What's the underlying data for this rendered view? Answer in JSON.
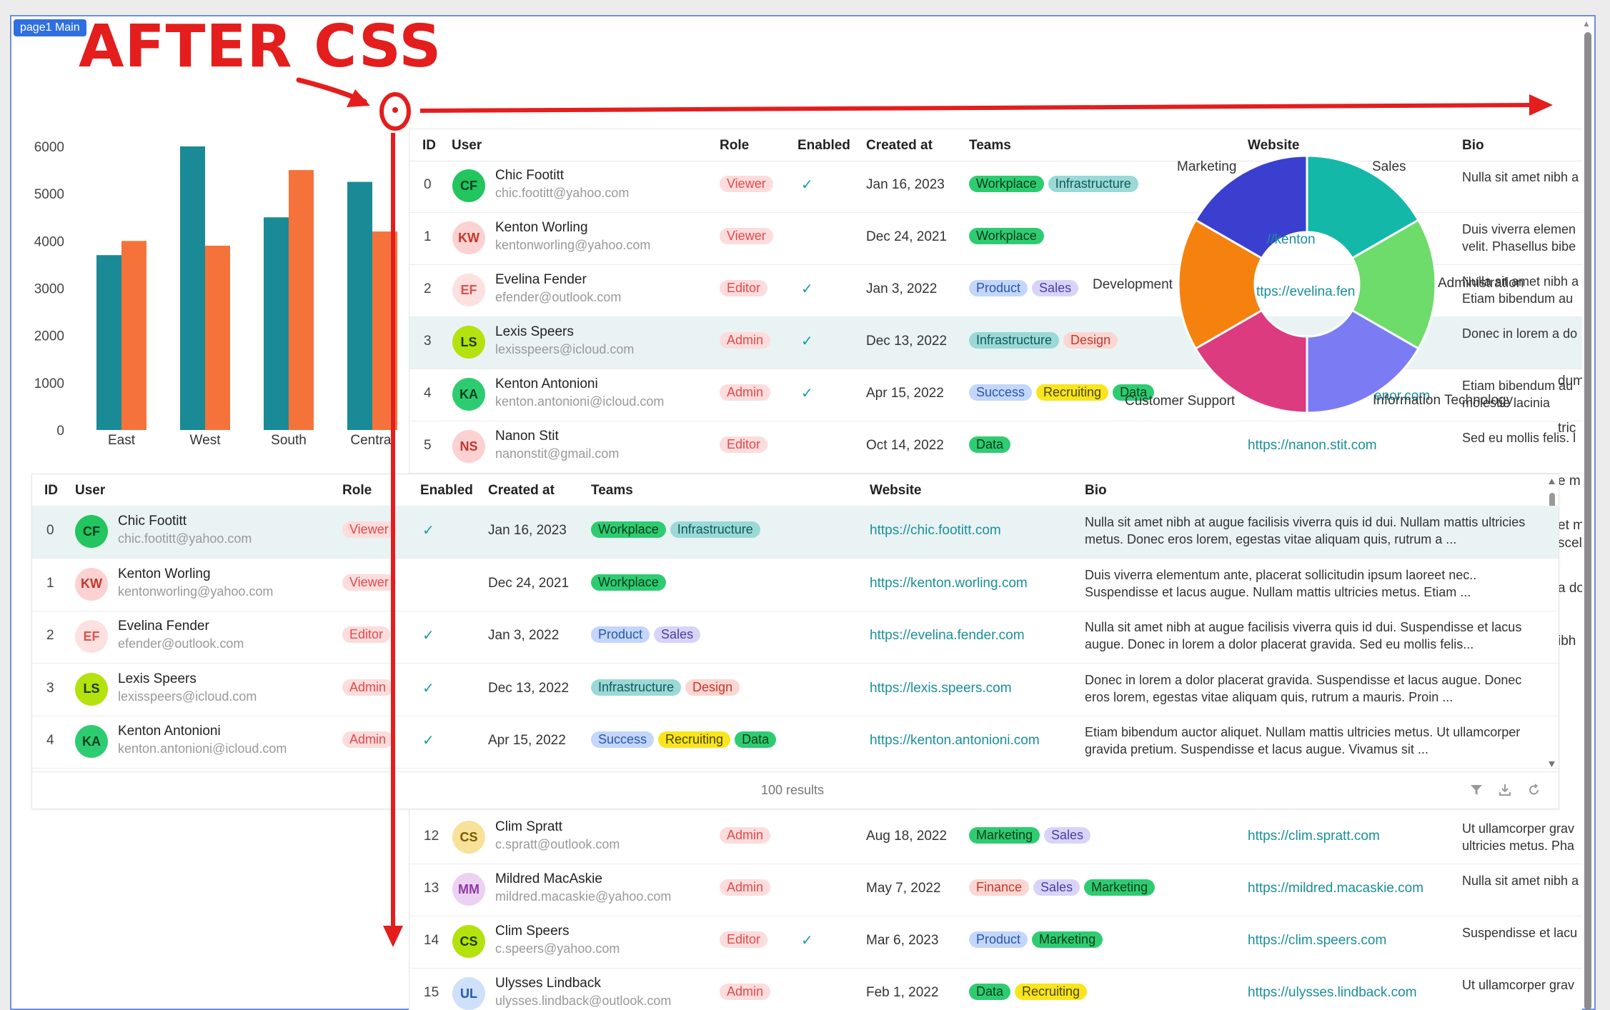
{
  "page_badge": "page1 Main",
  "annotation_title": "AFTER CSS",
  "colors": {
    "teal": "#1a8a96",
    "orange": "#f5733a",
    "arrow": "#e41d1d"
  },
  "chart_data": {
    "type": "bar",
    "categories": [
      "East",
      "West",
      "South",
      "Central"
    ],
    "series": [
      {
        "values": [
          3700,
          6000,
          4500,
          5250
        ],
        "color": "#1a8a96"
      },
      {
        "values": [
          4000,
          3900,
          5500,
          4200
        ],
        "color": "#f5733a"
      }
    ],
    "yticks": [
      "0",
      "1000",
      "2000",
      "3000",
      "4000",
      "5000",
      "6000"
    ],
    "ylim": [
      0,
      6000
    ]
  },
  "donut_data": {
    "type": "pie",
    "slices": [
      {
        "label": "Sales",
        "value": 1,
        "color": "#14b8a8"
      },
      {
        "label": "Administration",
        "value": 1,
        "color": "#6ddc6a"
      },
      {
        "label": "Information Technology",
        "value": 1,
        "color": "#7b7cf4"
      },
      {
        "label": "Customer Support",
        "value": 1,
        "color": "#dc3b80"
      },
      {
        "label": "Development",
        "value": 1,
        "color": "#f5820f"
      },
      {
        "label": "Marketing",
        "value": 1,
        "color": "#3b3fcf"
      }
    ]
  },
  "columns": {
    "id": "ID",
    "user": "User",
    "role": "Role",
    "enabled": "Enabled",
    "created": "Created at",
    "teams": "Teams",
    "website": "Website",
    "bio": "Bio"
  },
  "back_rows": [
    {
      "id": "0",
      "initials": "CF",
      "name": "Chic Footitt",
      "email": "chic.footitt@yahoo.com",
      "role": "Viewer",
      "enabled": true,
      "created": "Jan 16, 2023",
      "teams": [
        [
          "Workplace",
          "g"
        ],
        [
          "Infrastructure",
          "t"
        ]
      ],
      "website": "",
      "bio": "Nulla sit amet nibh a"
    },
    {
      "id": "1",
      "initials": "KW",
      "name": "Kenton Worling",
      "email": "kentonworling@yahoo.com",
      "role": "Viewer",
      "enabled": false,
      "created": "Dec 24, 2021",
      "teams": [
        [
          "Workplace",
          "g"
        ]
      ],
      "website": "",
      "bio": "Duis viverra elemen velit. Phasellus bibe"
    },
    {
      "id": "2",
      "initials": "EF",
      "name": "Evelina Fender",
      "email": "efender@outlook.com",
      "role": "Editor",
      "enabled": true,
      "created": "Jan 3, 2022",
      "teams": [
        [
          "Product",
          "b"
        ],
        [
          "Sales",
          "p"
        ]
      ],
      "website": "",
      "bio": "Nulla sit amet nibh a Etiam bibendum au"
    },
    {
      "id": "3",
      "initials": "LS",
      "name": "Lexis Speers",
      "email": "lexisspeers@icloud.com",
      "role": "Admin",
      "enabled": true,
      "created": "Dec 13, 2022",
      "teams": [
        [
          "Infrastructure",
          "t"
        ],
        [
          "Design",
          "r"
        ]
      ],
      "website": "",
      "bio": "Donec in lorem a do"
    },
    {
      "id": "4",
      "initials": "KA",
      "name": "Kenton Antonioni",
      "email": "kenton.antonioni@icloud.com",
      "role": "Admin",
      "enabled": true,
      "created": "Apr 15, 2022",
      "teams": [
        [
          "Success",
          "b"
        ],
        [
          "Recruiting",
          "y"
        ],
        [
          "Data",
          "g"
        ]
      ],
      "website": "",
      "bio": "Etiam bibendum au molestie lacinia"
    },
    {
      "id": "5",
      "initials": "NS",
      "name": "Nanon Stit",
      "email": "nanonstit@gmail.com",
      "role": "Editor",
      "enabled": false,
      "created": "Oct 14, 2022",
      "teams": [
        [
          "Data",
          "g"
        ]
      ],
      "website": "https://nanon.stit.com",
      "bio": "Sed eu mollis felis. l"
    },
    {
      "id": "12",
      "initials": "CS",
      "name": "Clim Spratt",
      "email": "c.spratt@outlook.com",
      "role": "Admin",
      "enabled": false,
      "created": "Aug 18, 2022",
      "teams": [
        [
          "Marketing",
          "g"
        ],
        [
          "Sales",
          "p"
        ]
      ],
      "website": "https://clim.spratt.com",
      "bio": "Ut ullamcorper grav ultricies metus. Pha"
    },
    {
      "id": "13",
      "initials": "MM",
      "name": "Mildred MacAskie",
      "email": "mildred.macaskie@yahoo.com",
      "role": "Admin",
      "enabled": false,
      "created": "May 7, 2022",
      "teams": [
        [
          "Finance",
          "r"
        ],
        [
          "Sales",
          "p"
        ],
        [
          "Marketing",
          "g"
        ]
      ],
      "website": "https://mildred.macaskie.com",
      "bio": "Nulla sit amet nibh a"
    },
    {
      "id": "14",
      "initials": "CS",
      "name": "Clim Speers",
      "email": "c.speers@yahoo.com",
      "role": "Editor",
      "enabled": true,
      "created": "Mar 6, 2023",
      "teams": [
        [
          "Product",
          "b"
        ],
        [
          "Marketing",
          "g"
        ]
      ],
      "website": "https://clim.speers.com",
      "bio": "Suspendisse et lacu"
    },
    {
      "id": "15",
      "initials": "UL",
      "name": "Ulysses Lindback",
      "email": "ulysses.lindback@outlook.com",
      "role": "Admin",
      "enabled": false,
      "created": "Feb 1, 2022",
      "teams": [
        [
          "Data",
          "g"
        ],
        [
          "Recruiting",
          "y"
        ]
      ],
      "website": "https://ulysses.lindback.com",
      "bio": "Ut ullamcorper grav"
    }
  ],
  "back_partial_texts": [
    "//kenton",
    "ttps://evelina.fen",
    "enor.com",
    "dum",
    "tric",
    "e m",
    "et m",
    "scel",
    "a do",
    "ibh"
  ],
  "front_rows": [
    {
      "id": "0",
      "initials": "CF",
      "name": "Chic Footitt",
      "email": "chic.footitt@yahoo.com",
      "role": "Viewer",
      "enabled": true,
      "created": "Jan 16, 2023",
      "teams": [
        [
          "Workplace",
          "g"
        ],
        [
          "Infrastructure",
          "t"
        ]
      ],
      "website": "https://chic.footitt.com",
      "bio": "Nulla sit amet nibh at augue facilisis viverra quis id dui. Nullam mattis ultricies metus. Donec eros lorem, egestas vitae aliquam quis, rutrum a ..."
    },
    {
      "id": "1",
      "initials": "KW",
      "name": "Kenton Worling",
      "email": "kentonworling@yahoo.com",
      "role": "Viewer",
      "enabled": false,
      "created": "Dec 24, 2021",
      "teams": [
        [
          "Workplace",
          "g"
        ]
      ],
      "website": "https://kenton.worling.com",
      "bio": "Duis viverra elementum ante, placerat sollicitudin ipsum laoreet nec.. Suspendisse et lacus augue. Nullam mattis ultricies metus. Etiam ..."
    },
    {
      "id": "2",
      "initials": "EF",
      "name": "Evelina Fender",
      "email": "efender@outlook.com",
      "role": "Editor",
      "enabled": true,
      "created": "Jan 3, 2022",
      "teams": [
        [
          "Product",
          "b"
        ],
        [
          "Sales",
          "p"
        ]
      ],
      "website": "https://evelina.fender.com",
      "bio": "Nulla sit amet nibh at augue facilisis viverra quis id dui. Suspendisse et lacus augue. Donec in lorem a dolor placerat gravida. Sed eu mollis felis..."
    },
    {
      "id": "3",
      "initials": "LS",
      "name": "Lexis Speers",
      "email": "lexisspeers@icloud.com",
      "role": "Admin",
      "enabled": true,
      "created": "Dec 13, 2022",
      "teams": [
        [
          "Infrastructure",
          "t"
        ],
        [
          "Design",
          "r"
        ]
      ],
      "website": "https://lexis.speers.com",
      "bio": "Donec in lorem a dolor placerat gravida. Suspendisse et lacus augue. Donec eros lorem, egestas vitae aliquam quis, rutrum a mauris. Proin ..."
    },
    {
      "id": "4",
      "initials": "KA",
      "name": "Kenton Antonioni",
      "email": "kenton.antonioni@icloud.com",
      "role": "Admin",
      "enabled": true,
      "created": "Apr 15, 2022",
      "teams": [
        [
          "Success",
          "b"
        ],
        [
          "Recruiting",
          "y"
        ],
        [
          "Data",
          "g"
        ]
      ],
      "website": "https://kenton.antonioni.com",
      "bio": "Etiam bibendum auctor aliquet. Nullam mattis ultricies metus. Ut ullamcorper gravida pretium. Suspendisse et lacus augue. Vivamus sit ..."
    }
  ],
  "front_footer": {
    "results": "100 results"
  },
  "icons": {
    "filter": "filter-icon",
    "download": "download-icon",
    "reset": "reset-icon"
  }
}
